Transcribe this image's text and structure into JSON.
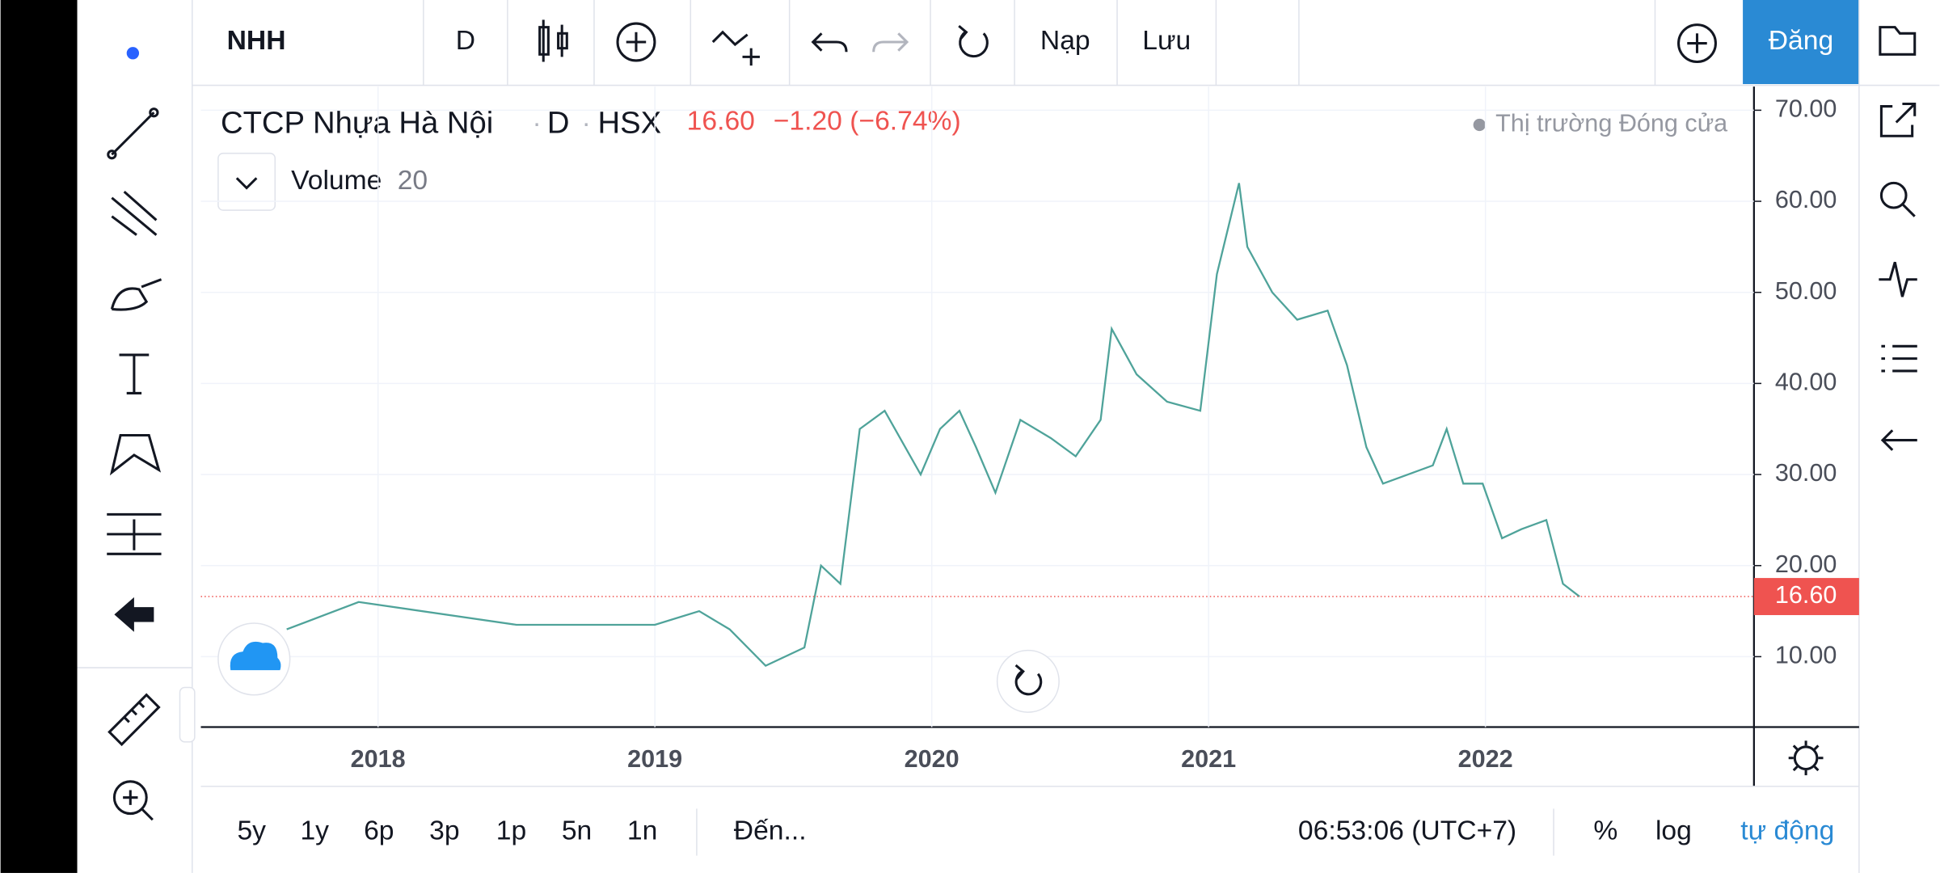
{
  "toolbar": {
    "symbol": "NHH",
    "interval": "D",
    "load": "Nạp",
    "save": "Lưu",
    "signin": "Đăng"
  },
  "legend": {
    "name": "CTCP Nhựa Hà Nội",
    "interval": "D",
    "exchange": "HSX",
    "price": "16.60",
    "change": "−1.20 (−6.74%)",
    "market_status": "Thị trường Đóng cửa",
    "indicator": "Volume",
    "indicator_param": "20"
  },
  "chart_data": {
    "type": "line",
    "x": [
      2017.67,
      2017.93,
      2018.5,
      2019.0,
      2019.16,
      2019.27,
      2019.4,
      2019.54,
      2019.6,
      2019.67,
      2019.74,
      2019.83,
      2019.96,
      2020.03,
      2020.1,
      2020.16,
      2020.23,
      2020.32,
      2020.43,
      2020.52,
      2020.61,
      2020.65,
      2020.74,
      2020.85,
      2020.97,
      2021.03,
      2021.11,
      2021.14,
      2021.23,
      2021.32,
      2021.43,
      2021.5,
      2021.57,
      2021.63,
      2021.72,
      2021.81,
      2021.86,
      2021.92,
      2021.99,
      2022.06,
      2022.13,
      2022.22,
      2022.28,
      2022.34
    ],
    "series": [
      {
        "name": "NHH",
        "color": "#4fa39a",
        "values": [
          13,
          16,
          13.5,
          13.5,
          15,
          13,
          9,
          11,
          20,
          18,
          35,
          37,
          30,
          35,
          37,
          33,
          28,
          36,
          34,
          32,
          36,
          46,
          41,
          38,
          37,
          52,
          62,
          55,
          50,
          47,
          48,
          42,
          33,
          29,
          30,
          31,
          35,
          29,
          29,
          23,
          24,
          25,
          18,
          16.6
        ]
      }
    ],
    "last_price": {
      "value": 16.6,
      "label": "16.60"
    },
    "last_price_color": "#ef5350",
    "xlim": [
      2017.36,
      2022.97
    ],
    "ylim": [
      2.27,
      72.6
    ],
    "xticks": [
      2018,
      2019,
      2020,
      2021,
      2022
    ],
    "yticks": [
      {
        "value": 10,
        "label": "10.00"
      },
      {
        "value": 20,
        "label": "20.00"
      },
      {
        "value": 30,
        "label": "30.00"
      },
      {
        "value": 40,
        "label": "40.00"
      },
      {
        "value": 50,
        "label": "50.00"
      },
      {
        "value": 60,
        "label": "60.00"
      },
      {
        "value": 70,
        "label": "70.00"
      }
    ],
    "grid": true
  },
  "bottom_bar": {
    "ranges": [
      "5y",
      "1y",
      "6p",
      "3p",
      "1p",
      "5n",
      "1n"
    ],
    "goto": "Đến...",
    "time": "06:53:06 (UTC+7)",
    "percent": "%",
    "log": "log",
    "auto": "tự động"
  }
}
